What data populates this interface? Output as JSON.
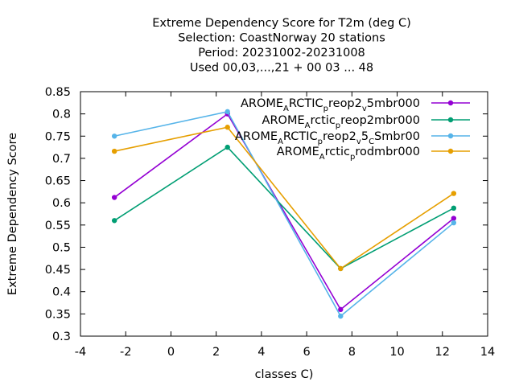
{
  "chart_data": {
    "type": "line",
    "title_lines": [
      "Extreme Dependency Score  for T2m (deg C)",
      "Selection: CoastNorway     20 stations",
      "Period: 20231002-20231008",
      "Used  00,03,...,21  + 00 03 ... 48"
    ],
    "xlabel": "classes C)",
    "ylabel": "Extreme Dependency Score",
    "xlim": [
      -4,
      14
    ],
    "ylim": [
      0.3,
      0.85
    ],
    "x_ticks": [
      "-4",
      "-2",
      "0",
      "2",
      "4",
      "6",
      "8",
      "10",
      "12",
      "14"
    ],
    "y_ticks": [
      "0.3",
      "0.35",
      "0.4",
      "0.45",
      "0.5",
      "0.55",
      "0.6",
      "0.65",
      "0.7",
      "0.75",
      "0.8",
      "0.85"
    ],
    "x": [
      -2.5,
      2.5,
      7.5,
      12.5
    ],
    "series": [
      {
        "name_parts": [
          [
            "AROME",
            ""
          ],
          [
            "A",
            "sub"
          ],
          [
            "RCTIC",
            ""
          ],
          [
            "p",
            "sub"
          ],
          [
            "reop2",
            ""
          ],
          [
            "v",
            "sub"
          ],
          [
            "5mbr000",
            ""
          ]
        ],
        "color": "#9400d3",
        "values": [
          0.612,
          0.8,
          0.36,
          0.565
        ]
      },
      {
        "name_parts": [
          [
            "AROME",
            ""
          ],
          [
            "A",
            "sub"
          ],
          [
            "rctic",
            ""
          ],
          [
            "p",
            "sub"
          ],
          [
            "reop2mbr000",
            ""
          ]
        ],
        "color": "#009e73",
        "values": [
          0.56,
          0.725,
          0.452,
          0.588
        ]
      },
      {
        "name_parts": [
          [
            "AROME",
            ""
          ],
          [
            "A",
            "sub"
          ],
          [
            "RCTIC",
            ""
          ],
          [
            "p",
            "sub"
          ],
          [
            "reop2",
            ""
          ],
          [
            "v",
            "sub"
          ],
          [
            "5",
            ""
          ],
          [
            "C",
            "sub"
          ],
          [
            "Smbr00",
            ""
          ]
        ],
        "color": "#56b4e9",
        "values": [
          0.75,
          0.805,
          0.345,
          0.555
        ]
      },
      {
        "name_parts": [
          [
            "AROME",
            ""
          ],
          [
            "A",
            "sub"
          ],
          [
            "rctic",
            ""
          ],
          [
            "p",
            "sub"
          ],
          [
            "rodmbr000",
            ""
          ]
        ],
        "color": "#e69f00",
        "values": [
          0.716,
          0.77,
          0.452,
          0.621
        ]
      }
    ],
    "grid": false,
    "legend_position": "top-right"
  }
}
